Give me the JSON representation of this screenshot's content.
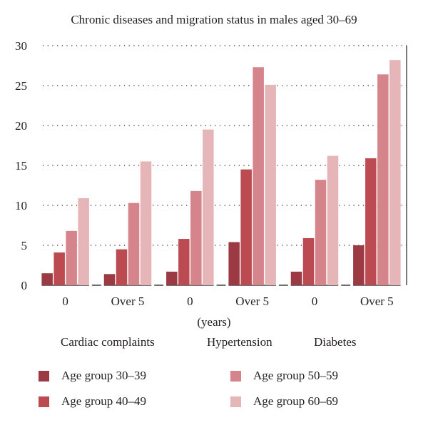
{
  "chart_data": {
    "type": "bar",
    "title": "Chronic diseases and migration status in males aged 30–69",
    "xlabel": "(years)",
    "ylabel": "",
    "ylim": [
      0,
      30
    ],
    "yticks": [
      0,
      5,
      10,
      15,
      20,
      25,
      30
    ],
    "grid": "horizontal dotted",
    "categories": [
      "0",
      "Over 5",
      "0",
      "Over 5",
      "0",
      "Over 5"
    ],
    "groups": [
      "Cardiac complaints",
      "Hypertension",
      "Diabetes"
    ],
    "series": [
      {
        "name": "Age group 30–39",
        "color": "#9b3a42",
        "values": [
          1.5,
          1.4,
          1.7,
          5.4,
          1.7,
          5.0
        ]
      },
      {
        "name": "Age group 40–49",
        "color": "#bb4b51",
        "values": [
          4.1,
          4.5,
          5.8,
          14.5,
          5.9,
          15.9
        ]
      },
      {
        "name": "Age group 50–59",
        "color": "#d4848a",
        "values": [
          6.8,
          10.3,
          11.8,
          27.3,
          13.2,
          26.4
        ]
      },
      {
        "name": "Age group 60–69",
        "color": "#e5b5b8",
        "values": [
          10.9,
          15.5,
          19.5,
          25.1,
          16.2,
          28.2
        ]
      }
    ],
    "legend_position": "bottom"
  }
}
